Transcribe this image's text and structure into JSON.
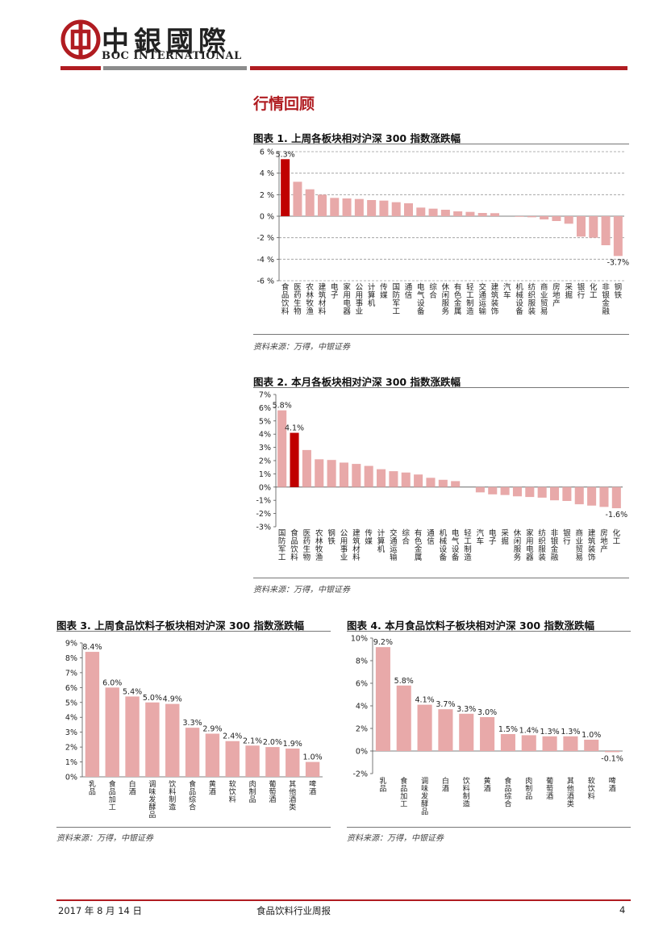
{
  "header": {
    "brand_cn": "中銀國際",
    "brand_en": "BOC INTERNATIONAL",
    "colors": {
      "red": "#b01c21",
      "gray": "#8c8c8c",
      "bar": "#e8a9a9",
      "highlight": "#c00000"
    }
  },
  "section_title": "行情回顾",
  "footer": {
    "date": "2017 年 8 月 14 日",
    "title": "食品饮料行业周报",
    "page": "4"
  },
  "chart_data": [
    {
      "type": "bar",
      "title": "图表 1. 上周各板块相对沪深 300 指数涨跌幅",
      "source": "资料来源：万得，中银证券",
      "categories": [
        "食品饮料",
        "医药生物",
        "农林牧渔",
        "建筑材料",
        "电子",
        "家用电器",
        "公用事业",
        "计算机",
        "传媒",
        "国防军工",
        "通信",
        "电气设备",
        "综合",
        "休闲服务",
        "有色金属",
        "轻工制造",
        "交通运输",
        "建筑装饰",
        "汽车",
        "机械设备",
        "纺织服装",
        "商业贸易",
        "房地产",
        "采掘",
        "银行",
        "化工",
        "非银金融",
        "钢铁"
      ],
      "values": [
        5.3,
        3.2,
        2.5,
        2.0,
        1.7,
        1.65,
        1.6,
        1.5,
        1.45,
        1.3,
        1.2,
        0.8,
        0.7,
        0.6,
        0.45,
        0.4,
        0.3,
        0.28,
        0.0,
        -0.05,
        -0.1,
        -0.3,
        -0.45,
        -0.7,
        -1.9,
        -2.0,
        -2.7,
        -3.7
      ],
      "highlight_index": 0,
      "data_labels": [
        {
          "index": 0,
          "text": "5.3%"
        },
        {
          "index": 27,
          "text": "-3.7%"
        }
      ],
      "ylim": [
        -6,
        6
      ],
      "yticks": [
        "-6 %",
        "-4 %",
        "-2 %",
        "0 %",
        "2 %",
        "4 %",
        "6 %"
      ],
      "ytick_values": [
        -6,
        -4,
        -2,
        0,
        2,
        4,
        6
      ],
      "grid": true
    },
    {
      "type": "bar",
      "title": "图表 2. 本月各板块相对沪深 300 指数涨跌幅",
      "source": "资料来源：万得，中银证券",
      "categories": [
        "国防军工",
        "食品饮料",
        "医药生物",
        "农林牧渔",
        "钢铁",
        "公用事业",
        "建筑材料",
        "传媒",
        "计算机",
        "交通运输",
        "综合",
        "有色金属",
        "通信",
        "机械设备",
        "电气设备",
        "轻工制造",
        "汽车",
        "电子",
        "采掘",
        "休闲服务",
        "家用电器",
        "纺织服装",
        "非银金融",
        "银行",
        "商业贸易",
        "建筑装饰",
        "房地产",
        "化工"
      ],
      "values": [
        5.8,
        4.1,
        2.8,
        2.1,
        2.05,
        1.85,
        1.75,
        1.6,
        1.35,
        1.2,
        1.1,
        0.95,
        0.7,
        0.55,
        0.45,
        0.0,
        -0.4,
        -0.55,
        -0.6,
        -0.7,
        -0.75,
        -0.8,
        -1.0,
        -1.05,
        -1.3,
        -1.4,
        -1.5,
        -1.6
      ],
      "highlight_index": 1,
      "data_labels": [
        {
          "index": 0,
          "text": "5.8%"
        },
        {
          "index": 1,
          "text": "4.1%"
        },
        {
          "index": 27,
          "text": "-1.6%"
        }
      ],
      "ylim": [
        -3,
        7
      ],
      "yticks": [
        "-3%",
        "-2%",
        "-1%",
        "0%",
        "1%",
        "2%",
        "3%",
        "4%",
        "5%",
        "6%",
        "7%"
      ],
      "ytick_values": [
        -3,
        -2,
        -1,
        0,
        1,
        2,
        3,
        4,
        5,
        6,
        7
      ],
      "grid": false
    },
    {
      "type": "bar",
      "title": "图表 3. 上周食品饮料子板块相对沪深 300 指数涨跌幅",
      "source": "资料来源：万得，中银证券",
      "categories": [
        "乳品",
        "食品加工",
        "白酒",
        "调味发酵品",
        "饮料制造",
        "食品综合",
        "黄酒",
        "软饮料",
        "肉制品",
        "葡萄酒",
        "其他酒类",
        "啤酒"
      ],
      "values": [
        8.4,
        6.0,
        5.4,
        5.0,
        4.9,
        3.3,
        2.9,
        2.4,
        2.1,
        2.0,
        1.9,
        1.0
      ],
      "data_labels": [
        "8.4%",
        "6.0%",
        "5.4%",
        "5.0%",
        "4.9%",
        "3.3%",
        "2.9%",
        "2.4%",
        "2.1%",
        "2.0%",
        "1.9%",
        "1.0%"
      ],
      "ylim": [
        0,
        9
      ],
      "yticks": [
        "0%",
        "1%",
        "2%",
        "3%",
        "4%",
        "5%",
        "6%",
        "7%",
        "8%",
        "9%"
      ],
      "ytick_values": [
        0,
        1,
        2,
        3,
        4,
        5,
        6,
        7,
        8,
        9
      ],
      "grid": false
    },
    {
      "type": "bar",
      "title": "图表 4. 本月食品饮料子板块相对沪深 300 指数涨跌幅",
      "source": "资料来源：万得，中银证券",
      "categories": [
        "乳品",
        "食品加工",
        "调味发酵品",
        "白酒",
        "饮料制造",
        "黄酒",
        "食品综合",
        "肉制品",
        "葡萄酒",
        "其他酒类",
        "软饮料",
        "啤酒"
      ],
      "values": [
        9.2,
        5.8,
        4.1,
        3.7,
        3.3,
        3.0,
        1.5,
        1.4,
        1.3,
        1.3,
        1.0,
        -0.1
      ],
      "data_labels": [
        "9.2%",
        "5.8%",
        "4.1%",
        "3.7%",
        "3.3%",
        "3.0%",
        "1.5%",
        "1.4%",
        "1.3%",
        "1.3%",
        "1.0%",
        "-0.1%"
      ],
      "ylim": [
        -2,
        10
      ],
      "yticks": [
        "-2%",
        "0%",
        "2%",
        "4%",
        "6%",
        "8%",
        "10%"
      ],
      "ytick_values": [
        -2,
        0,
        2,
        4,
        6,
        8,
        10
      ],
      "grid": false
    }
  ]
}
